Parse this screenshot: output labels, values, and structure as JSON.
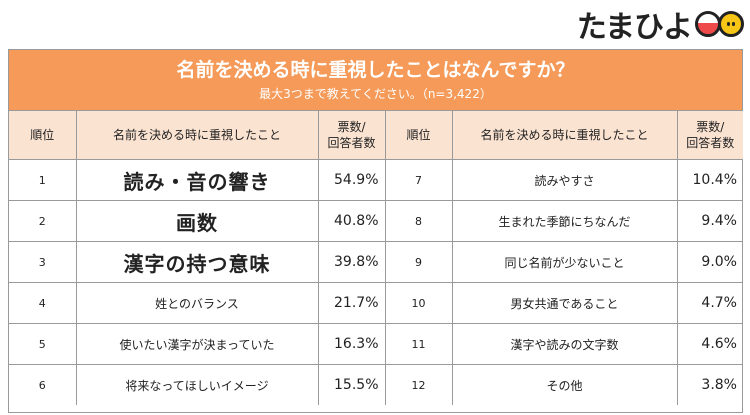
{
  "brand": {
    "name": "たまひよ"
  },
  "banner": {
    "title": "名前を決める時に重視したことはなんですか？",
    "subtitle": "最大3つまで教えてください。（n=3,422）"
  },
  "table": {
    "headers": {
      "rank": "順位",
      "item": "名前を決める時に重視したこと",
      "votes": "票数/\n回答者数"
    },
    "left_rows": [
      {
        "rank": "1",
        "item": "読み・音の響き",
        "pct": "54.9%",
        "emphasis": true
      },
      {
        "rank": "2",
        "item": "画数",
        "pct": "40.8%",
        "emphasis": true
      },
      {
        "rank": "3",
        "item": "漢字の持つ意味",
        "pct": "39.8%",
        "emphasis": true
      },
      {
        "rank": "4",
        "item": "姓とのバランス",
        "pct": "21.7%",
        "emphasis": false
      },
      {
        "rank": "5",
        "item": "使いたい漢字が決まっていた",
        "pct": "16.3%",
        "emphasis": false
      },
      {
        "rank": "6",
        "item": "将来なってほしいイメージ",
        "pct": "15.5%",
        "emphasis": false
      }
    ],
    "right_rows": [
      {
        "rank": "7",
        "item": "読みやすさ",
        "pct": "10.4%"
      },
      {
        "rank": "8",
        "item": "生まれた季節にちなんだ",
        "pct": "9.4%"
      },
      {
        "rank": "9",
        "item": "同じ名前が少ないこと",
        "pct": "9.0%"
      },
      {
        "rank": "10",
        "item": "男女共通であること",
        "pct": "4.7%"
      },
      {
        "rank": "11",
        "item": "漢字や読みの文字数",
        "pct": "4.6%"
      },
      {
        "rank": "12",
        "item": "その他",
        "pct": "3.8%"
      }
    ]
  }
}
